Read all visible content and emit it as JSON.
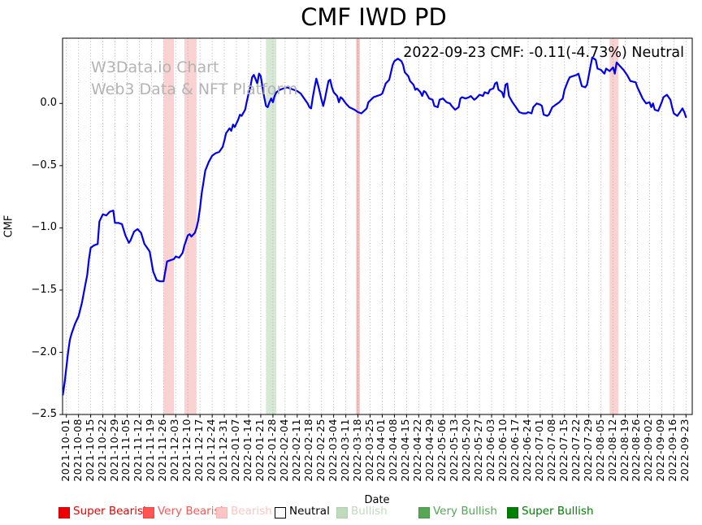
{
  "chart_data": {
    "type": "line",
    "title": "CMF IWD PD",
    "xlabel": "Date",
    "ylabel": "CMF",
    "annotation": "2022-09-23 CMF: -0.11(-4.73%) Neutral",
    "watermark": {
      "line1": "W3Data.io Chart",
      "line2": "Web3 Data & NFT Platform"
    },
    "grid": "vertical-dotted",
    "legend_position": "bottom",
    "ylim": [
      -2.5,
      0.52
    ],
    "ytick_labels": [
      "0.0",
      "−0.5",
      "−1.0",
      "−1.5",
      "−2.0",
      "−2.5"
    ],
    "ytick_values": [
      0.0,
      -0.5,
      -1.0,
      -1.5,
      -2.0,
      -2.5
    ],
    "xtick_labels": [
      "2021-10-01",
      "2021-10-08",
      "2021-10-15",
      "2021-10-22",
      "2021-10-29",
      "2021-11-05",
      "2021-11-12",
      "2021-11-19",
      "2021-11-26",
      "2021-12-03",
      "2021-12-10",
      "2021-12-17",
      "2021-12-24",
      "2021-12-31",
      "2022-01-07",
      "2022-01-14",
      "2022-01-21",
      "2022-01-28",
      "2022-02-04",
      "2022-02-11",
      "2022-02-18",
      "2022-02-25",
      "2022-03-04",
      "2022-03-11",
      "2022-03-18",
      "2022-03-25",
      "2022-04-01",
      "2022-04-08",
      "2022-04-15",
      "2022-04-22",
      "2022-04-29",
      "2022-05-06",
      "2022-05-13",
      "2022-05-20",
      "2022-05-27",
      "2022-06-03",
      "2022-06-10",
      "2022-06-17",
      "2022-06-24",
      "2022-07-01",
      "2022-07-08",
      "2022-07-15",
      "2022-07-22",
      "2022-07-29",
      "2022-08-05",
      "2022-08-12",
      "2022-08-19",
      "2022-08-26",
      "2022-09-02",
      "2022-09-09",
      "2022-09-16",
      "2022-09-23"
    ],
    "line_color": "#0000ee",
    "bands": [
      {
        "start": "2021-11-26",
        "end": "2021-12-02",
        "color": "#fad2d2",
        "sentiment": "Bearish"
      },
      {
        "start": "2021-12-08",
        "end": "2021-12-15",
        "color": "#fad2d2",
        "sentiment": "Bearish"
      },
      {
        "start": "2022-01-24",
        "end": "2022-01-30",
        "color": "#d8e8d6",
        "sentiment": "Bullish"
      },
      {
        "start": "2022-03-17",
        "end": "2022-03-19",
        "color": "#f6bcbc",
        "sentiment": "Bearish"
      },
      {
        "start": "2022-08-10",
        "end": "2022-08-15",
        "color": "#fad2d2",
        "sentiment": "Bearish"
      }
    ],
    "legend": [
      {
        "label": "Super Bearish",
        "color": "#ee0000",
        "text_color": "#ee0000",
        "border": "#cc0000"
      },
      {
        "label": "Very Bearish",
        "color": "#ff5555",
        "text_color": "#ff5555",
        "border": "#ee4444"
      },
      {
        "label": "Bearish",
        "color": "#ffc4c4",
        "text_color": "#ffc4c4",
        "border": "#f5b5b5"
      },
      {
        "label": "Neutral",
        "color": "#ffffff",
        "text_color": "#000000",
        "border": "#000000"
      },
      {
        "label": "Bullish",
        "color": "#bedcbc",
        "text_color": "#bedcbc",
        "border": "#afd0ad"
      },
      {
        "label": "Very Bullish",
        "color": "#55a655",
        "text_color": "#55a655",
        "border": "#4a964a"
      },
      {
        "label": "Super Bullish",
        "color": "#008000",
        "text_color": "#008000",
        "border": "#007000"
      }
    ],
    "series": [
      {
        "name": "CMF",
        "points": [
          [
            "2021-09-29",
            -2.34
          ],
          [
            "2021-09-30",
            -2.24
          ],
          [
            "2021-10-01",
            -2.12
          ],
          [
            "2021-10-02",
            -2.0
          ],
          [
            "2021-10-03",
            -1.9
          ],
          [
            "2021-10-04",
            -1.85
          ],
          [
            "2021-10-06",
            -1.77
          ],
          [
            "2021-10-08",
            -1.71
          ],
          [
            "2021-10-10",
            -1.6
          ],
          [
            "2021-10-12",
            -1.45
          ],
          [
            "2021-10-13",
            -1.38
          ],
          [
            "2021-10-14",
            -1.25
          ],
          [
            "2021-10-15",
            -1.16
          ],
          [
            "2021-10-17",
            -1.14
          ],
          [
            "2021-10-19",
            -1.13
          ],
          [
            "2021-10-20",
            -0.95
          ],
          [
            "2021-10-21",
            -0.92
          ],
          [
            "2021-10-22",
            -0.89
          ],
          [
            "2021-10-24",
            -0.9
          ],
          [
            "2021-10-26",
            -0.87
          ],
          [
            "2021-10-28",
            -0.86
          ],
          [
            "2021-10-29",
            -0.96
          ],
          [
            "2021-10-31",
            -0.96
          ],
          [
            "2021-11-02",
            -0.97
          ],
          [
            "2021-11-04",
            -1.06
          ],
          [
            "2021-11-06",
            -1.12
          ],
          [
            "2021-11-07",
            -1.1
          ],
          [
            "2021-11-09",
            -1.03
          ],
          [
            "2021-11-11",
            -1.01
          ],
          [
            "2021-11-13",
            -1.04
          ],
          [
            "2021-11-15",
            -1.13
          ],
          [
            "2021-11-17",
            -1.17
          ],
          [
            "2021-11-18",
            -1.19
          ],
          [
            "2021-11-20",
            -1.35
          ],
          [
            "2021-11-22",
            -1.42
          ],
          [
            "2021-11-24",
            -1.43
          ],
          [
            "2021-11-26",
            -1.43
          ],
          [
            "2021-11-28",
            -1.27
          ],
          [
            "2021-11-30",
            -1.26
          ],
          [
            "2021-12-02",
            -1.25
          ],
          [
            "2021-12-03",
            -1.23
          ],
          [
            "2021-12-05",
            -1.24
          ],
          [
            "2021-12-07",
            -1.2
          ],
          [
            "2021-12-08",
            -1.14
          ],
          [
            "2021-12-10",
            -1.06
          ],
          [
            "2021-12-11",
            -1.05
          ],
          [
            "2021-12-12",
            -1.07
          ],
          [
            "2021-12-14",
            -1.04
          ],
          [
            "2021-12-15",
            -1.0
          ],
          [
            "2021-12-16",
            -0.94
          ],
          [
            "2021-12-17",
            -0.84
          ],
          [
            "2021-12-18",
            -0.72
          ],
          [
            "2021-12-19",
            -0.63
          ],
          [
            "2021-12-20",
            -0.54
          ],
          [
            "2021-12-22",
            -0.47
          ],
          [
            "2021-12-24",
            -0.42
          ],
          [
            "2021-12-26",
            -0.4
          ],
          [
            "2021-12-28",
            -0.39
          ],
          [
            "2021-12-30",
            -0.35
          ],
          [
            "2021-12-31",
            -0.3
          ],
          [
            "2022-01-01",
            -0.24
          ],
          [
            "2022-01-03",
            -0.2
          ],
          [
            "2022-01-04",
            -0.22
          ],
          [
            "2022-01-05",
            -0.17
          ],
          [
            "2022-01-06",
            -0.19
          ],
          [
            "2022-01-08",
            -0.13
          ],
          [
            "2022-01-09",
            -0.09
          ],
          [
            "2022-01-10",
            -0.1
          ],
          [
            "2022-01-12",
            -0.05
          ],
          [
            "2022-01-13",
            0.02
          ],
          [
            "2022-01-14",
            0.08
          ],
          [
            "2022-01-15",
            0.13
          ],
          [
            "2022-01-16",
            0.21
          ],
          [
            "2022-01-17",
            0.23
          ],
          [
            "2022-01-19",
            0.16
          ],
          [
            "2022-01-20",
            0.24
          ],
          [
            "2022-01-21",
            0.22
          ],
          [
            "2022-01-22",
            0.13
          ],
          [
            "2022-01-23",
            0.05
          ],
          [
            "2022-01-24",
            -0.02
          ],
          [
            "2022-01-25",
            -0.03
          ],
          [
            "2022-01-26",
            0.01
          ],
          [
            "2022-01-27",
            0.04
          ],
          [
            "2022-01-28",
            0.01
          ],
          [
            "2022-01-29",
            0.06
          ],
          [
            "2022-01-30",
            0.09
          ],
          [
            "2022-02-01",
            0.11
          ],
          [
            "2022-02-03",
            0.12
          ],
          [
            "2022-02-05",
            0.13
          ],
          [
            "2022-02-07",
            0.12
          ],
          [
            "2022-02-09",
            0.11
          ],
          [
            "2022-02-11",
            0.1
          ],
          [
            "2022-02-13",
            0.08
          ],
          [
            "2022-02-15",
            0.04
          ],
          [
            "2022-02-17",
            0.0
          ],
          [
            "2022-02-18",
            -0.03
          ],
          [
            "2022-02-19",
            -0.04
          ],
          [
            "2022-02-20",
            0.05
          ],
          [
            "2022-02-21",
            0.13
          ],
          [
            "2022-02-22",
            0.2
          ],
          [
            "2022-02-23",
            0.15
          ],
          [
            "2022-02-24",
            0.09
          ],
          [
            "2022-02-25",
            0.03
          ],
          [
            "2022-02-26",
            -0.02
          ],
          [
            "2022-02-27",
            0.04
          ],
          [
            "2022-02-28",
            0.11
          ],
          [
            "2022-03-01",
            0.18
          ],
          [
            "2022-03-02",
            0.19
          ],
          [
            "2022-03-03",
            0.13
          ],
          [
            "2022-03-04",
            0.09
          ],
          [
            "2022-03-06",
            0.06
          ],
          [
            "2022-03-07",
            0.01
          ],
          [
            "2022-03-08",
            0.05
          ],
          [
            "2022-03-09",
            0.04
          ],
          [
            "2022-03-11",
            0.0
          ],
          [
            "2022-03-13",
            -0.03
          ],
          [
            "2022-03-16",
            -0.05
          ],
          [
            "2022-03-18",
            -0.07
          ],
          [
            "2022-03-20",
            -0.08
          ],
          [
            "2022-03-23",
            -0.04
          ],
          [
            "2022-03-24",
            0.01
          ],
          [
            "2022-03-27",
            0.05
          ],
          [
            "2022-03-29",
            0.06
          ],
          [
            "2022-03-31",
            0.07
          ],
          [
            "2022-04-01",
            0.08
          ],
          [
            "2022-04-03",
            0.16
          ],
          [
            "2022-04-05",
            0.19
          ],
          [
            "2022-04-06",
            0.25
          ],
          [
            "2022-04-07",
            0.31
          ],
          [
            "2022-04-08",
            0.34
          ],
          [
            "2022-04-10",
            0.36
          ],
          [
            "2022-04-12",
            0.34
          ],
          [
            "2022-04-13",
            0.31
          ],
          [
            "2022-04-14",
            0.25
          ],
          [
            "2022-04-16",
            0.22
          ],
          [
            "2022-04-17",
            0.18
          ],
          [
            "2022-04-19",
            0.15
          ],
          [
            "2022-04-20",
            0.11
          ],
          [
            "2022-04-21",
            0.12
          ],
          [
            "2022-04-23",
            0.09
          ],
          [
            "2022-04-24",
            0.06
          ],
          [
            "2022-04-25",
            0.1
          ],
          [
            "2022-04-26",
            0.09
          ],
          [
            "2022-04-28",
            0.04
          ],
          [
            "2022-04-30",
            0.03
          ],
          [
            "2022-05-01",
            -0.02
          ],
          [
            "2022-05-03",
            -0.03
          ],
          [
            "2022-05-04",
            0.03
          ],
          [
            "2022-05-06",
            0.04
          ],
          [
            "2022-05-08",
            0.01
          ],
          [
            "2022-05-10",
            0.0
          ],
          [
            "2022-05-11",
            -0.02
          ],
          [
            "2022-05-13",
            -0.05
          ],
          [
            "2022-05-15",
            -0.03
          ],
          [
            "2022-05-16",
            0.04
          ],
          [
            "2022-05-17",
            0.05
          ],
          [
            "2022-05-19",
            0.04
          ],
          [
            "2022-05-21",
            0.05
          ],
          [
            "2022-05-22",
            0.06
          ],
          [
            "2022-05-24",
            0.03
          ],
          [
            "2022-05-25",
            0.04
          ],
          [
            "2022-05-27",
            0.07
          ],
          [
            "2022-05-29",
            0.06
          ],
          [
            "2022-05-30",
            0.09
          ],
          [
            "2022-06-01",
            0.08
          ],
          [
            "2022-06-02",
            0.11
          ],
          [
            "2022-06-04",
            0.12
          ],
          [
            "2022-06-05",
            0.16
          ],
          [
            "2022-06-06",
            0.17
          ],
          [
            "2022-06-07",
            0.11
          ],
          [
            "2022-06-09",
            0.09
          ],
          [
            "2022-06-10",
            0.05
          ],
          [
            "2022-06-11",
            0.15
          ],
          [
            "2022-06-12",
            0.16
          ],
          [
            "2022-06-13",
            0.06
          ],
          [
            "2022-06-15",
            0.01
          ],
          [
            "2022-06-17",
            -0.03
          ],
          [
            "2022-06-18",
            -0.05
          ],
          [
            "2022-06-19",
            -0.07
          ],
          [
            "2022-06-21",
            -0.08
          ],
          [
            "2022-06-23",
            -0.08
          ],
          [
            "2022-06-24",
            -0.07
          ],
          [
            "2022-06-26",
            -0.08
          ],
          [
            "2022-06-27",
            -0.03
          ],
          [
            "2022-06-29",
            0.0
          ],
          [
            "2022-07-01",
            -0.01
          ],
          [
            "2022-07-02",
            -0.02
          ],
          [
            "2022-07-03",
            -0.09
          ],
          [
            "2022-07-05",
            -0.1
          ],
          [
            "2022-07-06",
            -0.09
          ],
          [
            "2022-07-08",
            -0.03
          ],
          [
            "2022-07-09",
            -0.02
          ],
          [
            "2022-07-10",
            -0.01
          ],
          [
            "2022-07-12",
            0.01
          ],
          [
            "2022-07-14",
            0.04
          ],
          [
            "2022-07-15",
            0.11
          ],
          [
            "2022-07-17",
            0.18
          ],
          [
            "2022-07-18",
            0.21
          ],
          [
            "2022-07-20",
            0.22
          ],
          [
            "2022-07-22",
            0.23
          ],
          [
            "2022-07-23",
            0.24
          ],
          [
            "2022-07-25",
            0.14
          ],
          [
            "2022-07-27",
            0.13
          ],
          [
            "2022-07-28",
            0.15
          ],
          [
            "2022-07-30",
            0.3
          ],
          [
            "2022-07-31",
            0.37
          ],
          [
            "2022-08-02",
            0.35
          ],
          [
            "2022-08-03",
            0.28
          ],
          [
            "2022-08-05",
            0.27
          ],
          [
            "2022-08-07",
            0.24
          ],
          [
            "2022-08-08",
            0.28
          ],
          [
            "2022-08-10",
            0.26
          ],
          [
            "2022-08-12",
            0.29
          ],
          [
            "2022-08-13",
            0.24
          ],
          [
            "2022-08-14",
            0.33
          ],
          [
            "2022-08-16",
            0.3
          ],
          [
            "2022-08-18",
            0.27
          ],
          [
            "2022-08-20",
            0.23
          ],
          [
            "2022-08-22",
            0.18
          ],
          [
            "2022-08-25",
            0.17
          ],
          [
            "2022-08-26",
            0.13
          ],
          [
            "2022-08-28",
            0.07
          ],
          [
            "2022-08-29",
            0.04
          ],
          [
            "2022-08-31",
            0.0
          ],
          [
            "2022-09-02",
            0.01
          ],
          [
            "2022-09-03",
            -0.03
          ],
          [
            "2022-09-04",
            0.0
          ],
          [
            "2022-09-05",
            -0.05
          ],
          [
            "2022-09-07",
            -0.06
          ],
          [
            "2022-09-09",
            0.01
          ],
          [
            "2022-09-10",
            0.05
          ],
          [
            "2022-09-12",
            0.07
          ],
          [
            "2022-09-14",
            0.03
          ],
          [
            "2022-09-15",
            -0.03
          ],
          [
            "2022-09-16",
            -0.08
          ],
          [
            "2022-09-18",
            -0.1
          ],
          [
            "2022-09-20",
            -0.06
          ],
          [
            "2022-09-21",
            -0.04
          ],
          [
            "2022-09-22",
            -0.07
          ],
          [
            "2022-09-23",
            -0.11
          ]
        ]
      }
    ]
  }
}
